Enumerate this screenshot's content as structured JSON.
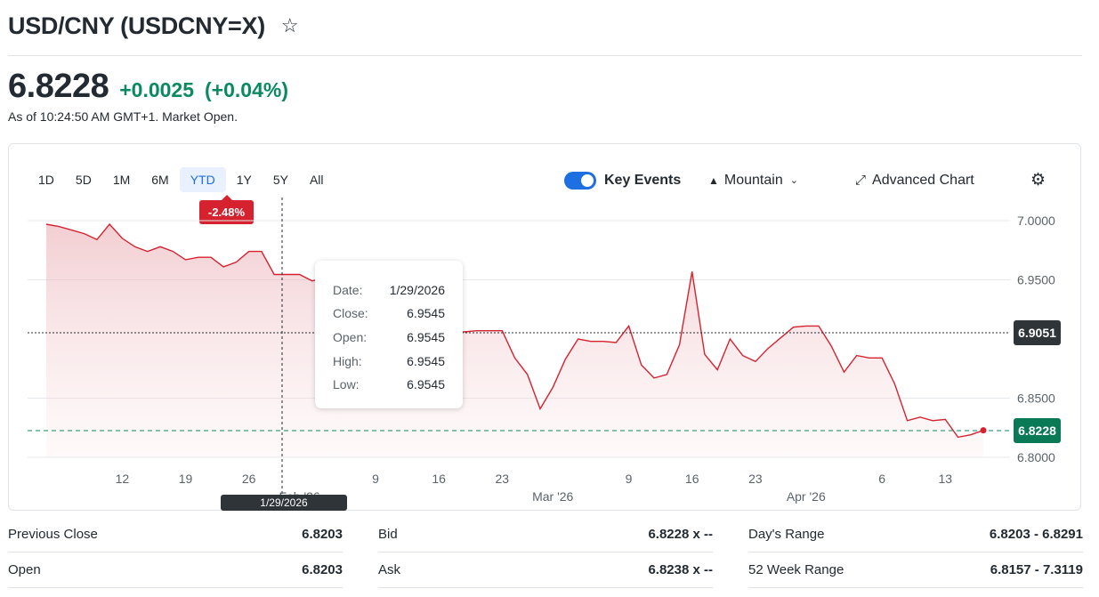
{
  "header": {
    "title": "USD/CNY (USDCNY=X)",
    "star_icon": "star-outline-icon"
  },
  "quote": {
    "price": "6.8228",
    "change": "+0.0025",
    "change_percent": "(+0.04%)",
    "as_of": "As of 10:24:50 AM GMT+1. Market Open.",
    "positive_color": "#0a8a5f"
  },
  "toolbar": {
    "ranges": [
      "1D",
      "5D",
      "1M",
      "6M",
      "YTD",
      "1Y",
      "5Y",
      "All"
    ],
    "active_range": "YTD",
    "ytd_change": "-2.48%",
    "key_events_label": "Key Events",
    "key_events_on": true,
    "chart_type_label": "Mountain",
    "advanced_label": "Advanced Chart"
  },
  "tooltip": {
    "date_label": "Date:",
    "date": "1/29/2026",
    "close_label": "Close:",
    "close": "6.9545",
    "open_label": "Open:",
    "open": "6.9545",
    "high_label": "High:",
    "high": "6.9545",
    "low_label": "Low:",
    "low": "6.9545"
  },
  "crosshair": {
    "price": "6.9051",
    "date": "1/29/2026"
  },
  "current_price_tag": "6.8228",
  "chart_data": {
    "type": "area",
    "title": "",
    "line_color": "#d6222f",
    "y_ticks": [
      "7.0000",
      "6.9500",
      "6.8500",
      "6.8000"
    ],
    "ylim": [
      6.8,
      7.0
    ],
    "x_ticks": [
      {
        "label": "12",
        "i": 6
      },
      {
        "label": "19",
        "i": 11
      },
      {
        "label": "26",
        "i": 16
      },
      {
        "label": "Feb '26",
        "i": 20
      },
      {
        "label": "9",
        "i": 26
      },
      {
        "label": "16",
        "i": 31
      },
      {
        "label": "23",
        "i": 36
      },
      {
        "label": "Mar '26",
        "i": 40
      },
      {
        "label": "9",
        "i": 46
      },
      {
        "label": "16",
        "i": 51
      },
      {
        "label": "23",
        "i": 56
      },
      {
        "label": "Apr '26",
        "i": 60
      },
      {
        "label": "6",
        "i": 66
      },
      {
        "label": "13",
        "i": 71
      }
    ],
    "values": [
      6.997,
      6.995,
      6.992,
      6.989,
      6.984,
      6.997,
      6.985,
      6.978,
      6.974,
      6.978,
      6.974,
      6.967,
      6.969,
      6.969,
      6.961,
      6.965,
      6.974,
      6.974,
      6.9545,
      6.9545,
      6.9545,
      6.949,
      6.952,
      6.948,
      6.943,
      6.939,
      6.925,
      6.911,
      6.907,
      6.909,
      6.907,
      6.907,
      6.906,
      6.906,
      6.907,
      6.907,
      6.907,
      6.884,
      6.87,
      6.841,
      6.859,
      6.883,
      6.9,
      6.898,
      6.898,
      6.897,
      6.911,
      6.878,
      6.867,
      6.87,
      6.895,
      6.957,
      6.887,
      6.874,
      6.9,
      6.886,
      6.881,
      6.892,
      6.901,
      6.91,
      6.911,
      6.911,
      6.894,
      6.872,
      6.886,
      6.884,
      6.884,
      6.862,
      6.831,
      6.834,
      6.831,
      6.832,
      6.817,
      6.819,
      6.8228
    ]
  },
  "stats": [
    {
      "label": "Previous Close",
      "value": "6.8203"
    },
    {
      "label": "Bid",
      "value": "6.8228 x --"
    },
    {
      "label": "Day's Range",
      "value": "6.8203 - 6.8291"
    },
    {
      "label": "Open",
      "value": "6.8203"
    },
    {
      "label": "Ask",
      "value": "6.8238 x --"
    },
    {
      "label": "52 Week Range",
      "value": "6.8157 - 7.3119"
    }
  ]
}
